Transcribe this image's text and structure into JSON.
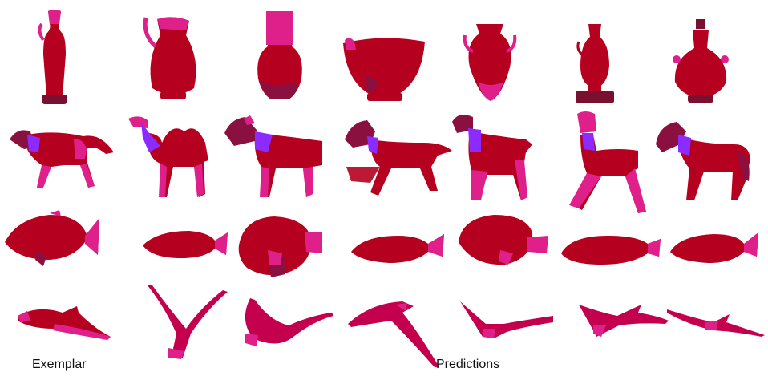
{
  "captions": {
    "exemplar": "Exemplar",
    "predictions": "Predictions"
  },
  "colors": {
    "body": "#b5001f",
    "head": "#8a1040",
    "part_magenta": "#e0208a",
    "part_violet": "#8c2bff",
    "divider": "#3b5bb8"
  },
  "rows": [
    {
      "category": "vase"
    },
    {
      "category": "quadruped"
    },
    {
      "category": "fish"
    },
    {
      "category": "bird"
    }
  ]
}
